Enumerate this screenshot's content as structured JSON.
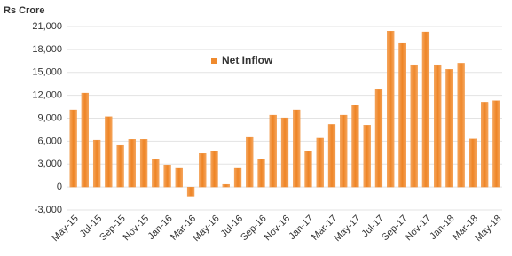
{
  "chart_data": {
    "type": "bar",
    "y_axis_title": "Rs Crore",
    "legend": "Net Inflow",
    "legend_position": "upper-left",
    "color": "#ef8a2e",
    "grid": true,
    "categories": [
      "May-15",
      null,
      "Jul-15",
      null,
      "Sep-15",
      null,
      "Nov-15",
      null,
      "Jan-16",
      null,
      "Mar-16",
      null,
      "May-16",
      null,
      "Jul-16",
      null,
      "Sep-16",
      null,
      "Nov-16",
      null,
      "Jan-17",
      null,
      "Mar-17",
      null,
      "May-17",
      null,
      "Jul-17",
      null,
      "Sep-17",
      null,
      "Nov-17",
      null,
      "Jan-18",
      null,
      "Mar-18",
      null,
      "May-18"
    ],
    "values": [
      10100,
      12300,
      6150,
      9200,
      5450,
      6250,
      6250,
      3600,
      2900,
      2450,
      -1200,
      4400,
      4650,
      350,
      2450,
      6500,
      3700,
      9400,
      9050,
      10100,
      4650,
      6400,
      8200,
      9400,
      10700,
      8100,
      12750,
      20400,
      18900,
      16000,
      20300,
      16000,
      15400,
      16200,
      6300,
      11100,
      11300
    ],
    "ylim": [
      -3000,
      21000
    ],
    "yticks": [
      {
        "value": -3000,
        "label": "-3,000"
      },
      0,
      {
        "value": 3000,
        "label": "3,000"
      },
      {
        "value": 6000,
        "label": "6,000"
      },
      {
        "value": 9000,
        "label": "9,000"
      },
      {
        "value": 12000,
        "label": "12,000"
      },
      {
        "value": 15000,
        "label": "15,000"
      },
      {
        "value": 18000,
        "label": "18,000"
      },
      {
        "value": 21000,
        "label": "21,000"
      }
    ]
  }
}
